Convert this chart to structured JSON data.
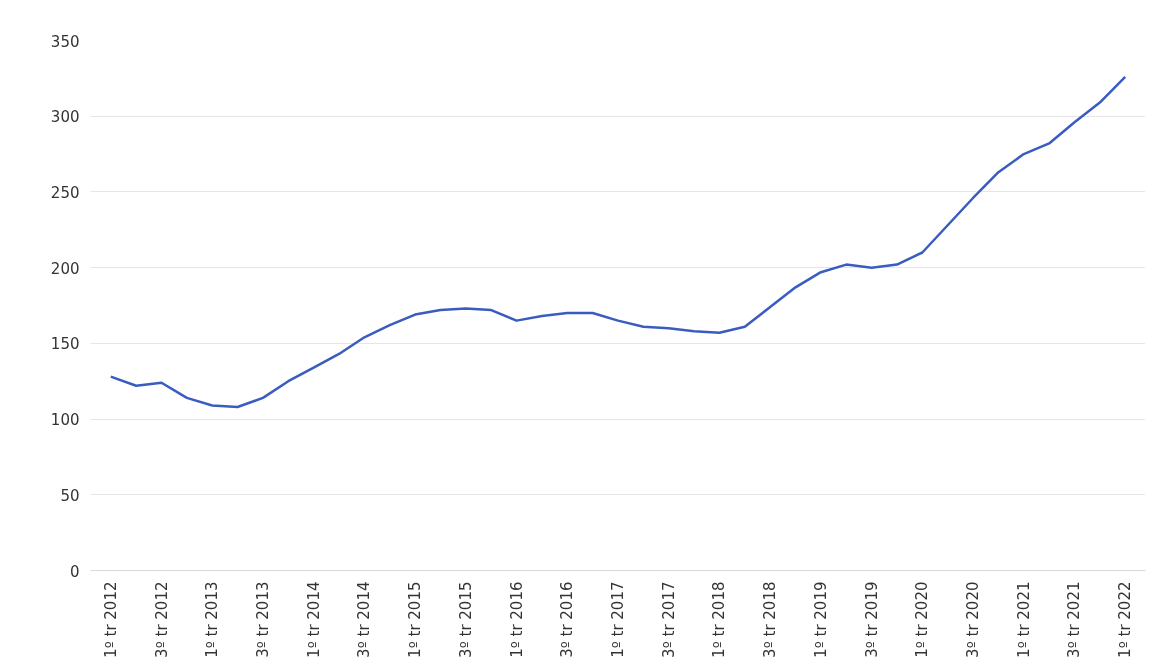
{
  "chart_data": {
    "type": "line",
    "categories": [
      "1º tr 2012",
      null,
      "3º tr 2012",
      null,
      "1º tr 2013",
      null,
      "3º tr 2013",
      null,
      "1º tr 2014",
      null,
      "3º tr 2014",
      null,
      "1º tr 2015",
      null,
      "3º tr 2015",
      null,
      "1º tr 2016",
      null,
      "3º tr 2016",
      null,
      "1º tr 2017",
      null,
      "3º tr 2017",
      null,
      "1º tr 2018",
      null,
      "3º tr 2018",
      null,
      "1º tr 2019",
      null,
      "3º tr 2019",
      null,
      "1º tr 2020",
      null,
      "3º tr 2020",
      null,
      "1º tr 2021",
      null,
      "3º tr 2021",
      null,
      "1º tr 2022"
    ],
    "series": [
      {
        "color": "#3a5cc0",
        "values": [
          128,
          122,
          124,
          114,
          109,
          108,
          114,
          125,
          134,
          143,
          154,
          162,
          169,
          172,
          173,
          172,
          165,
          168,
          170,
          170,
          165,
          161,
          160,
          158,
          157,
          161,
          174,
          187,
          197,
          202,
          200,
          202,
          210,
          228,
          246,
          263,
          275,
          282,
          296,
          309,
          326
        ]
      }
    ],
    "ylim": [
      0,
      350
    ],
    "yticks": [
      0,
      50,
      100,
      150,
      200,
      250,
      300,
      350
    ],
    "grid": "y",
    "marker": "none",
    "line_style": "solid"
  }
}
